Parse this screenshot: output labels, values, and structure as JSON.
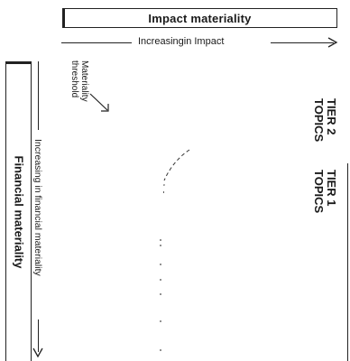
{
  "header": {
    "impact_title": "Impact materiality"
  },
  "impact_axis": {
    "label": "Increasingin Impact"
  },
  "financial_axis": {
    "label": "Increasing in financial materiality"
  },
  "side_panel": {
    "financial_title": "Financial materiality"
  },
  "threshold": {
    "line1": "Materiality",
    "line2": "threshold"
  },
  "tiers": [
    {
      "line1": "TIER 2",
      "line2": "TOPICS"
    },
    {
      "line1": "TIER 1",
      "line2": "TOPICS"
    }
  ]
}
